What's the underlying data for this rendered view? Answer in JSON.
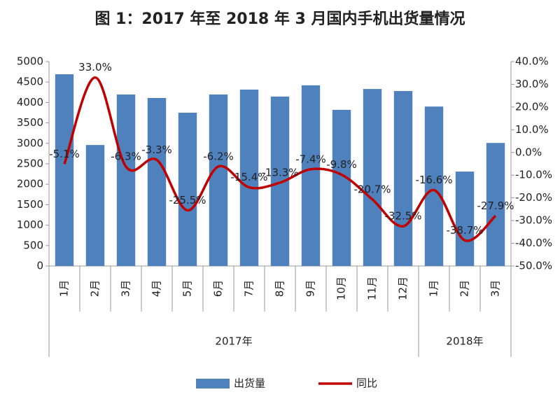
{
  "chart_data": {
    "type": "bar_line",
    "title": "图 1：2017 年至 2018 年 3 月国内手机出货量情况",
    "categories": [
      "1月",
      "2月",
      "3月",
      "4月",
      "5月",
      "6月",
      "7月",
      "8月",
      "9月",
      "10月",
      "11月",
      "12月",
      "1月",
      "2月",
      "3月"
    ],
    "x_groups": [
      "2017年",
      "2018年"
    ],
    "series": [
      {
        "name": "出货量",
        "color": "#4f81bd",
        "type": "bar",
        "axis": "y",
        "values": [
          4690,
          2960,
          4195,
          4110,
          3750,
          4195,
          4315,
          4145,
          4420,
          3820,
          4330,
          4280,
          3900,
          2310,
          3010
        ]
      },
      {
        "name": "同比",
        "color": "#c00000",
        "type": "line",
        "axis": "y2",
        "values": [
          -5.1,
          33.0,
          -6.3,
          -3.3,
          -25.5,
          -6.2,
          -15.4,
          -13.3,
          -7.4,
          -9.8,
          -20.7,
          -32.5,
          -16.6,
          -38.7,
          -27.9
        ],
        "value_labels": [
          "-5.1%",
          "33.0%",
          "-6.3%",
          "-3.3%",
          "-25.5%",
          "-6.2%",
          "-15.4%",
          "-13.3%",
          "-7.4%",
          "-9.8%",
          "-20.7%",
          "-32.5%",
          "-16.6%",
          "-38.7%",
          "-27.9%"
        ]
      }
    ],
    "ylim": [
      0,
      5000
    ],
    "yticks": [
      0,
      500,
      1000,
      1500,
      2000,
      2500,
      3000,
      3500,
      4000,
      4500,
      5000
    ],
    "y2lim": [
      -50,
      40
    ],
    "y2ticks": [
      {
        "value": -50,
        "label": "-50.0%"
      },
      {
        "value": -40,
        "label": "-40.0%"
      },
      {
        "value": -30,
        "label": "-30.0%"
      },
      {
        "value": -20,
        "label": "-20.0%"
      },
      {
        "value": -10,
        "label": "-10.0%"
      },
      {
        "value": 0,
        "label": "0.0%"
      },
      {
        "value": 10,
        "label": "10.0%"
      },
      {
        "value": 20,
        "label": "20.0%"
      },
      {
        "value": 30,
        "label": "30.0%"
      },
      {
        "value": 40,
        "label": "40.0%"
      }
    ],
    "legend": "bottom"
  }
}
